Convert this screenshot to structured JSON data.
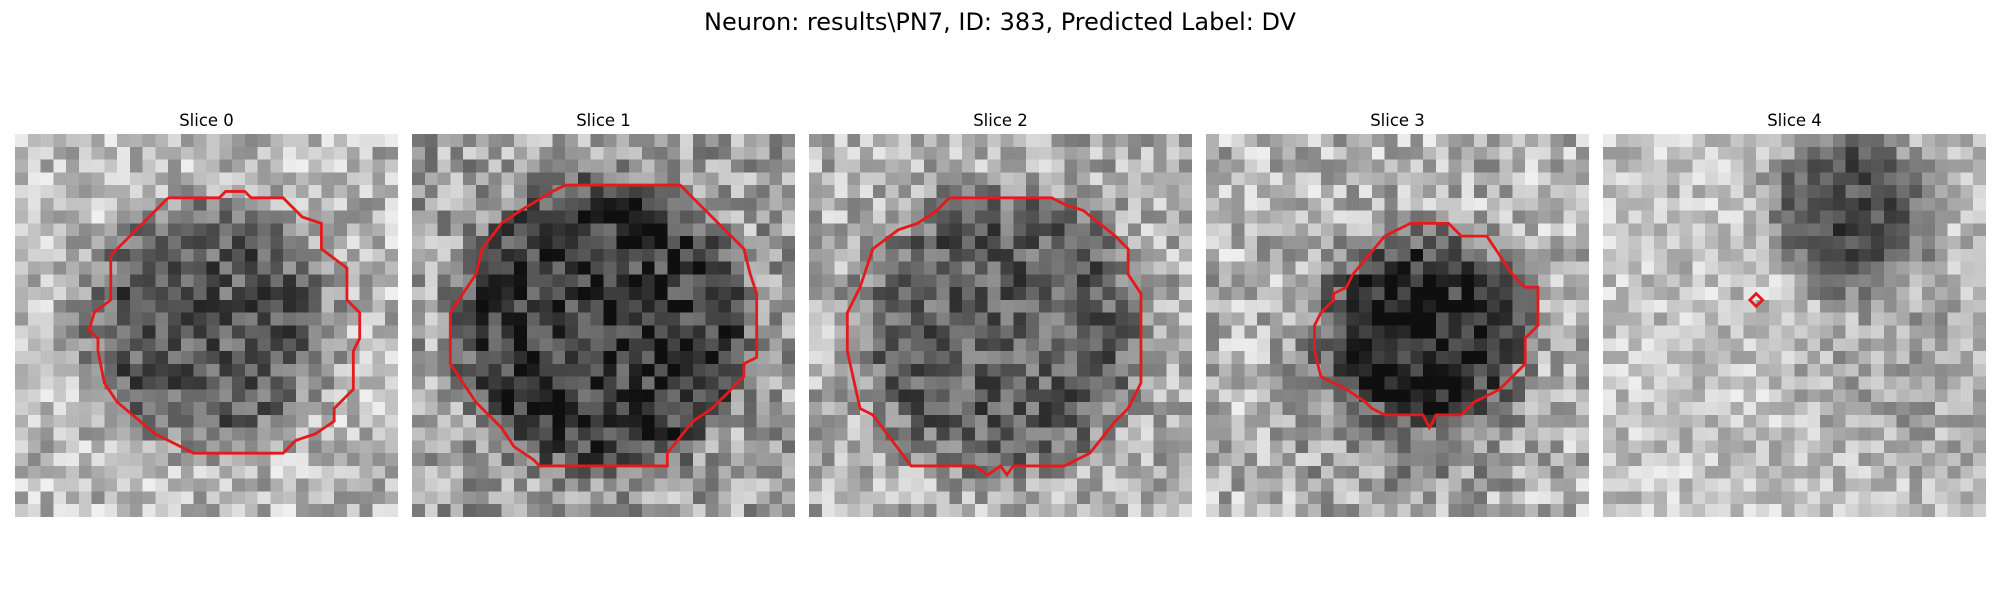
{
  "figure": {
    "title": "Neuron: results\\PN7, ID: 383, Predicted Label: DV"
  },
  "colors": {
    "contour": "#e41a1c",
    "colormap": "gray"
  },
  "panels": [
    {
      "title": "Slice 0"
    },
    {
      "title": "Slice 1"
    },
    {
      "title": "Slice 2"
    },
    {
      "title": "Slice 3"
    },
    {
      "title": "Slice 4"
    }
  ]
}
